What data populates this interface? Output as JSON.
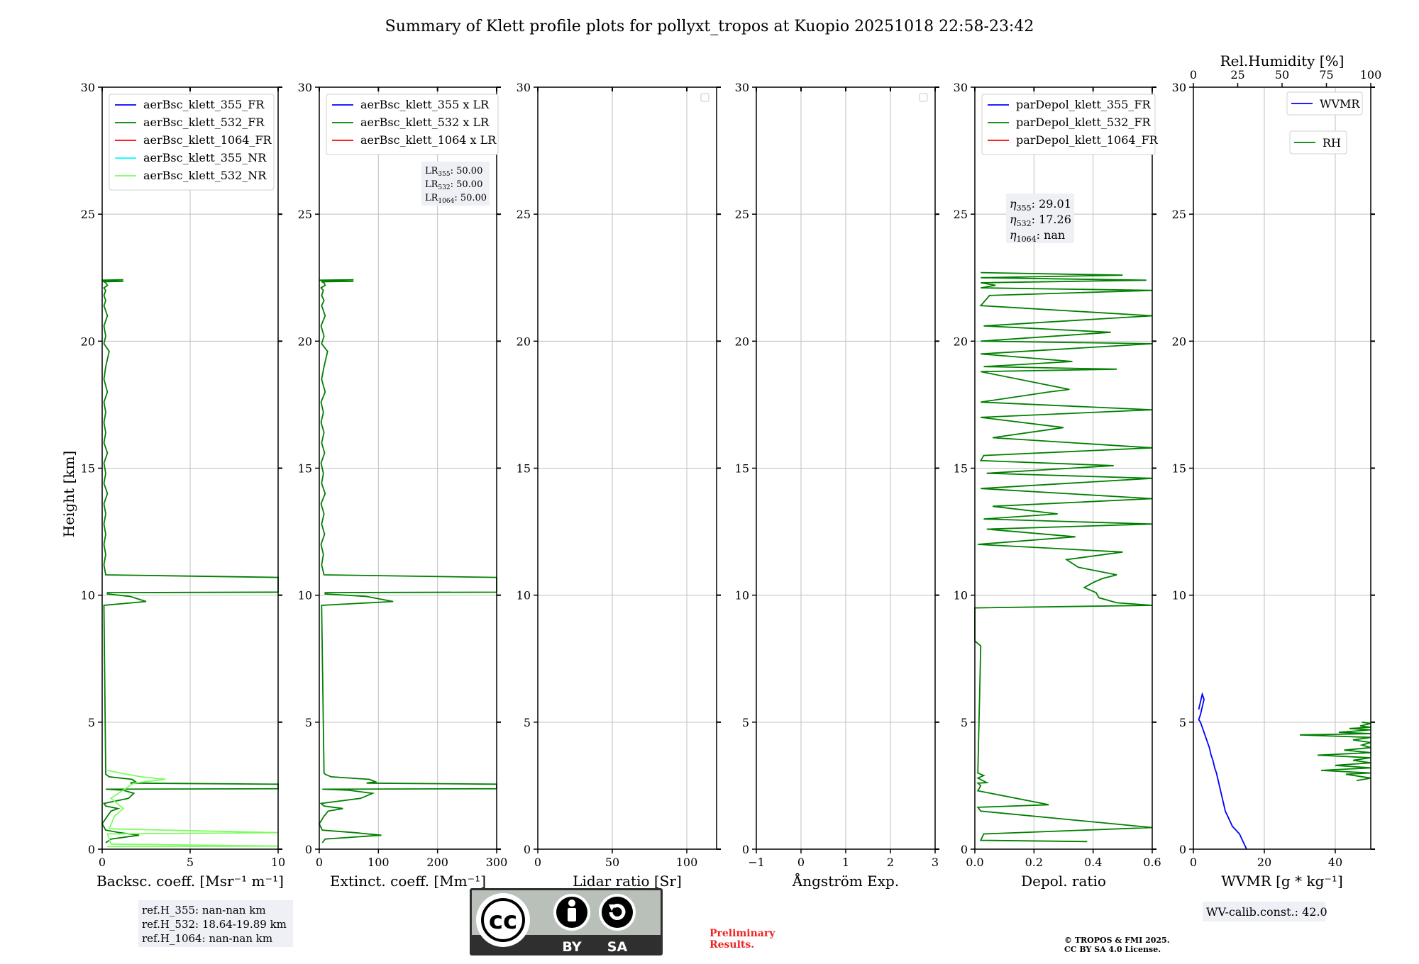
{
  "title": "Summary of Klett profile plots for pollyxt_tropos at Kuopio 20251018 22:58-23:42",
  "colors": {
    "blue": "#0000ff",
    "green": "#008000",
    "red": "#ff0000",
    "cyan": "#00ffff",
    "lightgreen": "#7cfc60",
    "grid": "#bfbfbf",
    "box": "#eef0f5",
    "preliminary": "#ee2222"
  },
  "y_axis": {
    "label": "Height [km]",
    "ylim": [
      0,
      30
    ],
    "ticks": [
      "0",
      "5",
      "10",
      "15",
      "20",
      "25",
      "30"
    ]
  },
  "panels": [
    {
      "id": "backscatter",
      "xlabel": "Backsc. coeff. [Msr⁻¹ m⁻¹]",
      "xlim": [
        0,
        10
      ],
      "xticks": [
        {
          "v": 0,
          "t": "0"
        },
        {
          "v": 5,
          "t": "5"
        },
        {
          "v": 10,
          "t": "10"
        }
      ],
      "legend": [
        {
          "label": "aerBsc_klett_355_FR",
          "color": "#0000ff"
        },
        {
          "label": "aerBsc_klett_532_FR",
          "color": "#008000"
        },
        {
          "label": "aerBsc_klett_1064_FR",
          "color": "#ff0000"
        },
        {
          "label": "aerBsc_klett_355_NR",
          "color": "#00ffff"
        },
        {
          "label": "aerBsc_klett_532_NR",
          "color": "#7cfc60"
        }
      ]
    },
    {
      "id": "extinction",
      "xlabel": "Extinct. coeff. [Mm⁻¹]",
      "xlim": [
        0,
        300
      ],
      "xticks": [
        {
          "v": 0,
          "t": "0"
        },
        {
          "v": 100,
          "t": "100"
        },
        {
          "v": 200,
          "t": "200"
        },
        {
          "v": 300,
          "t": "300"
        }
      ],
      "legend": [
        {
          "label": "aerBsc_klett_355 x LR",
          "color": "#0000ff"
        },
        {
          "label": "aerBsc_klett_532 x LR",
          "color": "#008000"
        },
        {
          "label": "aerBsc_klett_1064 x LR",
          "color": "#ff0000"
        }
      ],
      "lr_box": {
        "lines": [
          {
            "sym": "LR",
            "sub": "355",
            "val": ": 50.00"
          },
          {
            "sym": "LR",
            "sub": "532",
            "val": ": 50.00"
          },
          {
            "sym": "LR",
            "sub": "1064",
            "val": ": 50.00"
          }
        ]
      }
    },
    {
      "id": "lidar_ratio",
      "xlabel": "Lidar ratio [Sr]",
      "xlim": [
        0,
        120
      ],
      "xticks": [
        {
          "v": 0,
          "t": "0"
        },
        {
          "v": 50,
          "t": "50"
        },
        {
          "v": 100,
          "t": "100"
        }
      ]
    },
    {
      "id": "angstrom",
      "xlabel": "Ångström Exp.",
      "xlim": [
        -1,
        3
      ],
      "xticks": [
        {
          "v": -1,
          "t": "−1"
        },
        {
          "v": 0,
          "t": "0"
        },
        {
          "v": 1,
          "t": "1"
        },
        {
          "v": 2,
          "t": "2"
        },
        {
          "v": 3,
          "t": "3"
        }
      ]
    },
    {
      "id": "depol",
      "xlabel": "Depol. ratio",
      "xlim": [
        0,
        0.6
      ],
      "xticks": [
        {
          "v": 0,
          "t": "0.0"
        },
        {
          "v": 0.2,
          "t": "0.2"
        },
        {
          "v": 0.4,
          "t": "0.4"
        },
        {
          "v": 0.6,
          "t": "0.6"
        }
      ],
      "legend": [
        {
          "label": "parDepol_klett_355_FR",
          "color": "#0000ff"
        },
        {
          "label": "parDepol_klett_532_FR",
          "color": "#008000"
        },
        {
          "label": "parDepol_klett_1064_FR",
          "color": "#ff0000"
        }
      ],
      "eta_box": {
        "lines": [
          {
            "sym": "η",
            "sub": "355",
            "val": ": 29.01"
          },
          {
            "sym": "η",
            "sub": "532",
            "val": ": 17.26"
          },
          {
            "sym": "η",
            "sub": "1064",
            "val": ": nan"
          }
        ]
      }
    },
    {
      "id": "wvmr",
      "xlabel": "WVMR [g * kg⁻¹]",
      "xlim": [
        0,
        50
      ],
      "xticks": [
        {
          "v": 0,
          "t": "0"
        },
        {
          "v": 20,
          "t": "20"
        },
        {
          "v": 40,
          "t": "40"
        }
      ],
      "top_xlabel": "Rel.Humidity [%]",
      "top_xlim": [
        0,
        100
      ],
      "top_xticks": [
        {
          "v": 0,
          "t": "0"
        },
        {
          "v": 25,
          "t": "25"
        },
        {
          "v": 50,
          "t": "50"
        },
        {
          "v": 75,
          "t": "75"
        },
        {
          "v": 100,
          "t": "100"
        }
      ],
      "legend_wvmr": {
        "label": "WVMR",
        "color": "#0000ff"
      },
      "legend_rh": {
        "label": "RH",
        "color": "#008000"
      }
    }
  ],
  "ref_box": {
    "lines": [
      "ref.H_355: nan-nan km",
      "ref.H_532: 18.64-19.89 km",
      "ref.H_1064: nan-nan km"
    ]
  },
  "cc_logo": {
    "cc": "cc",
    "by": "BY",
    "sa": "SA"
  },
  "preliminary": {
    "line1": "Preliminary",
    "line2": "Results."
  },
  "copyright": {
    "line1": "© TROPOS & FMI 2025.",
    "line2": "CC BY SA 4.0 License."
  },
  "wv_calib": "WV-calib.const.: 42.0",
  "chart_data": [
    {
      "type": "line",
      "panel": "backscatter",
      "title": "",
      "xlabel": "Backsc. coeff. [Msr⁻¹ m⁻¹]",
      "ylabel": "Height [km]",
      "xlim": [
        0,
        10
      ],
      "ylim": [
        0,
        30
      ],
      "series": [
        {
          "name": "aerBsc_klett_532_FR",
          "color": "#008000",
          "x": [
            0.2,
            0.5,
            2.1,
            1.0,
            0.2,
            0,
            0.3,
            0.5,
            0.9,
            0.2,
            0.1,
            1.5,
            1.8,
            1.2,
            0.2,
            10,
            10,
            10,
            1.6,
            1.9,
            1.7,
            0.4,
            0.2,
            0.2,
            0.1,
            2.5,
            1.6,
            0.3,
            0.3,
            10,
            10,
            10,
            0.2,
            0.1,
            0.2,
            0.1,
            0.2,
            0.1,
            0.2,
            0.1,
            0.3,
            0.1,
            0.2,
            0.1,
            0.3,
            0.1,
            0.2,
            0.1,
            0.2,
            0.1,
            0.3,
            0.1,
            0.2,
            0.4,
            0.1,
            0.2,
            0.1,
            0.3,
            0.1,
            0.2,
            0.1,
            0.2,
            0.1,
            0.3,
            0.2,
            0.1,
            1.2,
            0.1,
            0,
            1.2
          ],
          "y": [
            0.25,
            0.4,
            0.55,
            0.65,
            0.75,
            1.0,
            1.3,
            1.5,
            1.6,
            1.7,
            1.8,
            2.0,
            2.2,
            2.32,
            2.36,
            2.38,
            2.5,
            2.56,
            2.6,
            2.65,
            2.75,
            2.85,
            2.95,
            3.0,
            9.6,
            9.75,
            9.95,
            10.05,
            10.1,
            10.12,
            10.5,
            10.7,
            10.8,
            11.2,
            11.6,
            12.0,
            12.4,
            12.8,
            13.2,
            13.6,
            14.0,
            14.4,
            14.8,
            15.2,
            15.6,
            16.0,
            16.4,
            16.8,
            17.2,
            17.6,
            18.0,
            18.5,
            19.0,
            19.6,
            19.9,
            20.2,
            20.6,
            21.0,
            21.4,
            21.6,
            21.8,
            22.0,
            22.1,
            22.2,
            22.3,
            22.34,
            22.36,
            22.38,
            22.4,
            22.42
          ]
        },
        {
          "name": "aerBsc_klett_532_NR",
          "color": "#7cfc60",
          "x": [
            0.3,
            10,
            0.5,
            0.3,
            10,
            0.4,
            0.7,
            1.2,
            0.5,
            1.8,
            3.6,
            2.2,
            1.0,
            0.3
          ],
          "y": [
            0.1,
            0.12,
            0.2,
            0.6,
            0.65,
            0.8,
            1.3,
            1.6,
            2.0,
            2.6,
            2.75,
            2.85,
            3.0,
            3.1
          ]
        }
      ]
    },
    {
      "type": "line",
      "panel": "extinction",
      "title": "",
      "xlabel": "Extinct. coeff. [Mm⁻¹]",
      "ylabel": "Height [km]",
      "xlim": [
        0,
        300
      ],
      "ylim": [
        0,
        30
      ],
      "series": [
        {
          "name": "aerBsc_klett_532 x LR",
          "color": "#008000",
          "x": [
            5,
            10,
            105,
            60,
            5,
            0,
            8,
            15,
            40,
            8,
            3,
            70,
            90,
            50,
            5,
            300,
            300,
            300,
            80,
            95,
            85,
            20,
            10,
            8,
            4,
            125,
            80,
            10,
            10,
            300,
            300,
            300,
            8,
            4,
            7,
            3,
            9,
            4,
            8,
            3,
            10,
            4,
            7,
            3,
            9,
            4,
            8,
            3,
            7,
            3,
            10,
            4,
            8,
            14,
            4,
            8,
            3,
            10,
            4,
            8,
            4,
            7,
            3,
            10,
            8,
            4,
            58,
            4,
            0,
            58
          ],
          "y": [
            0.25,
            0.4,
            0.55,
            0.65,
            0.75,
            1.0,
            1.3,
            1.5,
            1.6,
            1.7,
            1.8,
            2.0,
            2.2,
            2.32,
            2.36,
            2.38,
            2.5,
            2.56,
            2.6,
            2.65,
            2.75,
            2.85,
            2.95,
            3.0,
            9.6,
            9.75,
            9.95,
            10.05,
            10.1,
            10.12,
            10.5,
            10.7,
            10.8,
            11.2,
            11.6,
            12.0,
            12.4,
            12.8,
            13.2,
            13.6,
            14.0,
            14.4,
            14.8,
            15.2,
            15.6,
            16.0,
            16.4,
            16.8,
            17.2,
            17.6,
            18.0,
            18.5,
            19.0,
            19.6,
            19.9,
            20.2,
            20.6,
            21.0,
            21.4,
            21.6,
            21.8,
            22.0,
            22.1,
            22.2,
            22.3,
            22.34,
            22.36,
            22.38,
            22.4,
            22.42
          ]
        }
      ]
    },
    {
      "type": "line",
      "panel": "depol",
      "title": "",
      "xlabel": "Depol. ratio",
      "ylabel": "Height [km]",
      "xlim": [
        0,
        0.6
      ],
      "ylim": [
        0,
        30
      ],
      "series": [
        {
          "name": "parDepol_klett_532_FR",
          "color": "#008000",
          "x": [
            0.38,
            0.02,
            0.03,
            0.6,
            0.02,
            0.01,
            0.25,
            0.01,
            0.02,
            0.01,
            0.04,
            0.01,
            0.03,
            0.01,
            0.02,
            0,
            0,
            0.6,
            0.48,
            0.42,
            0.41,
            0.37,
            0.4,
            0.43,
            0.48,
            0.35,
            0.31,
            0.5,
            0.01,
            0.34,
            0.04,
            0.6,
            0.03,
            0.28,
            0.06,
            0.6,
            0.02,
            0.6,
            0.04,
            0.47,
            0.02,
            0.03,
            0.6,
            0.06,
            0.3,
            0.02,
            0.6,
            0.02,
            0.25,
            0.32,
            0.02,
            0.48,
            0.03,
            0.33,
            0.02,
            0.6,
            0.02,
            0.46,
            0.03,
            0.6,
            0.02,
            0.05,
            0.6,
            0.02,
            0.07,
            0.02,
            0.58,
            0.02,
            0.5,
            0.02
          ],
          "y": [
            0.3,
            0.35,
            0.6,
            0.85,
            1.5,
            1.65,
            1.75,
            2.3,
            2.5,
            2.6,
            2.62,
            2.8,
            2.9,
            3.0,
            8.0,
            8.2,
            9.5,
            9.6,
            9.7,
            9.9,
            10.1,
            10.3,
            10.5,
            10.65,
            10.8,
            11.1,
            11.4,
            11.7,
            12.0,
            12.3,
            12.6,
            12.8,
            13.0,
            13.2,
            13.5,
            13.8,
            14.2,
            14.6,
            14.8,
            15.1,
            15.3,
            15.5,
            15.8,
            16.2,
            16.6,
            17.0,
            17.3,
            17.6,
            18.0,
            18.1,
            18.8,
            18.9,
            19.0,
            19.2,
            19.5,
            19.9,
            20.0,
            20.35,
            20.6,
            21.0,
            21.4,
            21.8,
            22.0,
            22.1,
            22.2,
            22.3,
            22.4,
            22.5,
            22.6,
            22.7
          ]
        }
      ]
    },
    {
      "type": "line",
      "panel": "wvmr",
      "title": "",
      "xlabel": "WVMR [g * kg⁻¹]",
      "ylabel": "Height [km]",
      "xlim": [
        0,
        50
      ],
      "ylim": [
        0,
        30
      ],
      "series": [
        {
          "name": "WVMR",
          "color": "#0000ff",
          "x": [
            15,
            14,
            13,
            11,
            10,
            9,
            8.5,
            8,
            7.5,
            7,
            6.5,
            6,
            5.5,
            5,
            4.5,
            4,
            3.5,
            3,
            2.5,
            2,
            1.5,
            2,
            2.5,
            3,
            2.5,
            2,
            1.5
          ],
          "y": [
            0,
            0.3,
            0.6,
            0.9,
            1.2,
            1.5,
            1.8,
            2.1,
            2.4,
            2.7,
            3.0,
            3.2,
            3.5,
            3.7,
            4.0,
            4.2,
            4.4,
            4.6,
            4.8,
            5.0,
            5.1,
            5.3,
            5.6,
            5.9,
            6.1,
            5.8,
            5.5
          ]
        },
        {
          "name": "RH",
          "color": "#008000",
          "x": [
            92,
            100,
            86,
            100,
            72,
            100,
            80,
            100,
            90,
            100,
            70,
            100,
            85,
            100,
            95,
            100,
            90,
            100,
            60,
            100,
            82,
            100,
            88,
            100,
            94,
            100,
            95
          ],
          "y": [
            2.7,
            2.8,
            2.95,
            3.0,
            3.1,
            3.2,
            3.3,
            3.4,
            3.5,
            3.6,
            3.7,
            3.8,
            3.9,
            4.0,
            4.1,
            4.2,
            4.3,
            4.4,
            4.5,
            4.55,
            4.6,
            4.7,
            4.75,
            4.8,
            4.85,
            4.95,
            5.0
          ]
        }
      ]
    }
  ]
}
